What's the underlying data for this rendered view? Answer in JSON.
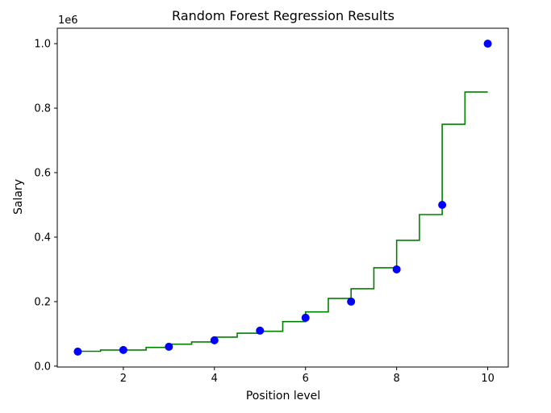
{
  "chart_data": {
    "type": "scatter",
    "title": "Random Forest Regression Results",
    "xlabel": "Position level",
    "ylabel": "Salary",
    "y_offset_label": "1e6",
    "xlim": [
      0.55,
      10.45
    ],
    "ylim": [
      -0.0028,
      1.0478
    ],
    "x_ticks": [
      2,
      4,
      6,
      8,
      10
    ],
    "x_tick_labels": [
      "2",
      "4",
      "6",
      "8",
      "10"
    ],
    "y_ticks": [
      0,
      0.2,
      0.4,
      0.6,
      0.8,
      1.0
    ],
    "y_tick_labels": [
      "0.0",
      "0.2",
      "0.4",
      "0.6",
      "0.8",
      "1.0"
    ],
    "grid": false,
    "legend": null,
    "series": [
      {
        "type": "scatter",
        "color": "#0000ff",
        "x": [
          1,
          2,
          3,
          4,
          5,
          6,
          7,
          8,
          9,
          10
        ],
        "y": [
          0.045,
          0.05,
          0.06,
          0.08,
          0.11,
          0.15,
          0.2,
          0.3,
          0.5,
          1.0
        ]
      },
      {
        "type": "line-step",
        "color": "#008000",
        "steps": [
          {
            "x0": 1.0,
            "x1": 1.5,
            "y": 0.046
          },
          {
            "x0": 1.5,
            "x1": 2.5,
            "y": 0.05
          },
          {
            "x0": 2.5,
            "x1": 3.0,
            "y": 0.058
          },
          {
            "x0": 3.0,
            "x1": 3.5,
            "y": 0.068
          },
          {
            "x0": 3.5,
            "x1": 4.0,
            "y": 0.075
          },
          {
            "x0": 4.0,
            "x1": 4.5,
            "y": 0.09
          },
          {
            "x0": 4.5,
            "x1": 5.0,
            "y": 0.102
          },
          {
            "x0": 5.0,
            "x1": 5.5,
            "y": 0.108
          },
          {
            "x0": 5.5,
            "x1": 6.0,
            "y": 0.138
          },
          {
            "x0": 6.0,
            "x1": 6.5,
            "y": 0.168
          },
          {
            "x0": 6.5,
            "x1": 7.0,
            "y": 0.21
          },
          {
            "x0": 7.0,
            "x1": 7.5,
            "y": 0.24
          },
          {
            "x0": 7.5,
            "x1": 8.0,
            "y": 0.305
          },
          {
            "x0": 8.0,
            "x1": 8.5,
            "y": 0.39
          },
          {
            "x0": 8.5,
            "x1": 9.0,
            "y": 0.47
          },
          {
            "x0": 9.0,
            "x1": 9.5,
            "y": 0.75
          },
          {
            "x0": 9.5,
            "x1": 10.0,
            "y": 0.85
          }
        ]
      }
    ]
  }
}
